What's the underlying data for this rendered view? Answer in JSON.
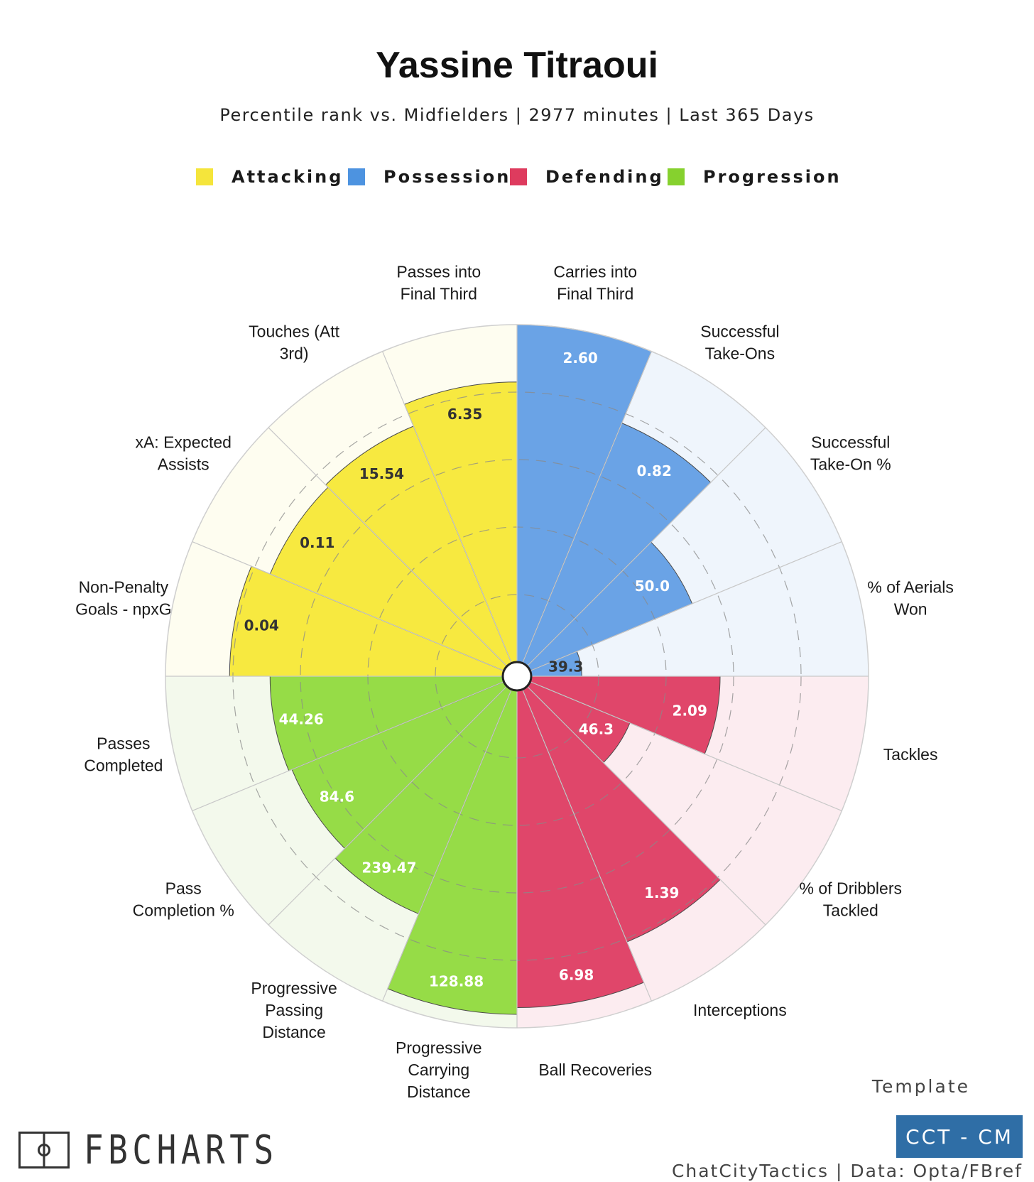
{
  "title": "Yassine Titraoui",
  "subtitle": "Percentile rank vs. Midfielders | 2977 minutes | Last 365 Days",
  "legend": [
    {
      "label": "Attacking",
      "color": "#f5e53b"
    },
    {
      "label": "Possession",
      "color": "#4d93e0"
    },
    {
      "label": "Defending",
      "color": "#de3b5e"
    },
    {
      "label": "Progression",
      "color": "#86d12e"
    }
  ],
  "chart_data": {
    "type": "polar-bar",
    "value_unit": "percentile",
    "rlim": [
      0,
      100
    ],
    "grid_rings": [
      20,
      40,
      60,
      80,
      100
    ],
    "categories": [
      {
        "label": "Carries into Final Third",
        "group": "Possession",
        "value": 2.6,
        "percentile": 100
      },
      {
        "label": "Successful Take-Ons",
        "group": "Possession",
        "value": 0.82,
        "percentile": 77
      },
      {
        "label": "Successful Take-On %",
        "group": "Possession",
        "value": 50.0,
        "percentile": 52
      },
      {
        "label": "% of Aerials Won",
        "group": "Possession",
        "value": 39.3,
        "percentile": 15
      },
      {
        "label": "Tackles",
        "group": "Defending",
        "value": 2.09,
        "percentile": 56
      },
      {
        "label": "% of Dribblers Tackled",
        "group": "Defending",
        "value": 46.3,
        "percentile": 32
      },
      {
        "label": "Interceptions",
        "group": "Defending",
        "value": 1.39,
        "percentile": 81
      },
      {
        "label": "Ball Recoveries",
        "group": "Defending",
        "value": 6.98,
        "percentile": 94
      },
      {
        "label": "Progressive Carrying Distance",
        "group": "Progression",
        "value": 128.88,
        "percentile": 96
      },
      {
        "label": "Progressive Passing Distance",
        "group": "Progression",
        "value": 239.47,
        "percentile": 72
      },
      {
        "label": "Pass Completion %",
        "group": "Progression",
        "value": 84.6,
        "percentile": 68
      },
      {
        "label": "Passes Completed",
        "group": "Progression",
        "value": 44.26,
        "percentile": 69
      },
      {
        "label": "Non-Penalty Goals - npxG",
        "group": "Attacking",
        "value": 0.04,
        "percentile": 81
      },
      {
        "label": "xA: Expected Assists",
        "group": "Attacking",
        "value": 0.11,
        "percentile": 75
      },
      {
        "label": "Touches (Att 3rd)",
        "group": "Attacking",
        "value": 15.54,
        "percentile": 76
      },
      {
        "label": "Passes into Final Third",
        "group": "Attacking",
        "value": 6.35,
        "percentile": 83
      }
    ],
    "value_labels": [
      "2.60",
      "0.82",
      "50.0",
      "39.3",
      "2.09",
      "46.3",
      "1.39",
      "6.98",
      "128.88",
      "239.47",
      "84.6",
      "44.26",
      "0.04",
      "0.11",
      "15.54",
      "6.35"
    ],
    "category_label_lines": [
      [
        "Carries into",
        "Final Third"
      ],
      [
        "Successful",
        "Take-Ons"
      ],
      [
        "Successful",
        "Take-On %"
      ],
      [
        "% of Aerials",
        "Won"
      ],
      [
        "Tackles"
      ],
      [
        "% of Dribblers",
        "Tackled"
      ],
      [
        "Interceptions"
      ],
      [
        "Ball Recoveries"
      ],
      [
        "Progressive",
        "Carrying",
        "Distance"
      ],
      [
        "Progressive",
        "Passing",
        "Distance"
      ],
      [
        "Pass",
        "Completion %"
      ],
      [
        "Passes",
        "Completed"
      ],
      [
        "Non-Penalty",
        "Goals - npxG"
      ],
      [
        "xA: Expected",
        "Assists"
      ],
      [
        "Touches (Att",
        "3rd)"
      ],
      [
        "Passes into",
        "Final Third"
      ]
    ],
    "group_colors": {
      "Attacking": {
        "fill": "#f7e940",
        "bg": "#fefdf0",
        "text": "#333333"
      },
      "Possession": {
        "fill": "#6aa3e6",
        "bg": "#eff5fc",
        "text": "#ffffff"
      },
      "Defending": {
        "fill": "#e0466a",
        "bg": "#fcecf0",
        "text": "#ffffff"
      },
      "Progression": {
        "fill": "#96dc47",
        "bg": "#f3f9ec",
        "text": "#ffffff"
      }
    },
    "value_label_colors": [
      "#ffffff",
      "#ffffff",
      "#ffffff",
      "#333333",
      "#ffffff",
      "#ffffff",
      "#ffffff",
      "#ffffff",
      "#ffffff",
      "#ffffff",
      "#ffffff",
      "#ffffff",
      "#333333",
      "#333333",
      "#333333",
      "#333333"
    ]
  },
  "template": {
    "caption": "Template",
    "badge": "CCT - CM"
  },
  "brand": {
    "name": "FBCHARTS"
  },
  "credit": "ChatCityTactics | Data: Opta/FBref"
}
